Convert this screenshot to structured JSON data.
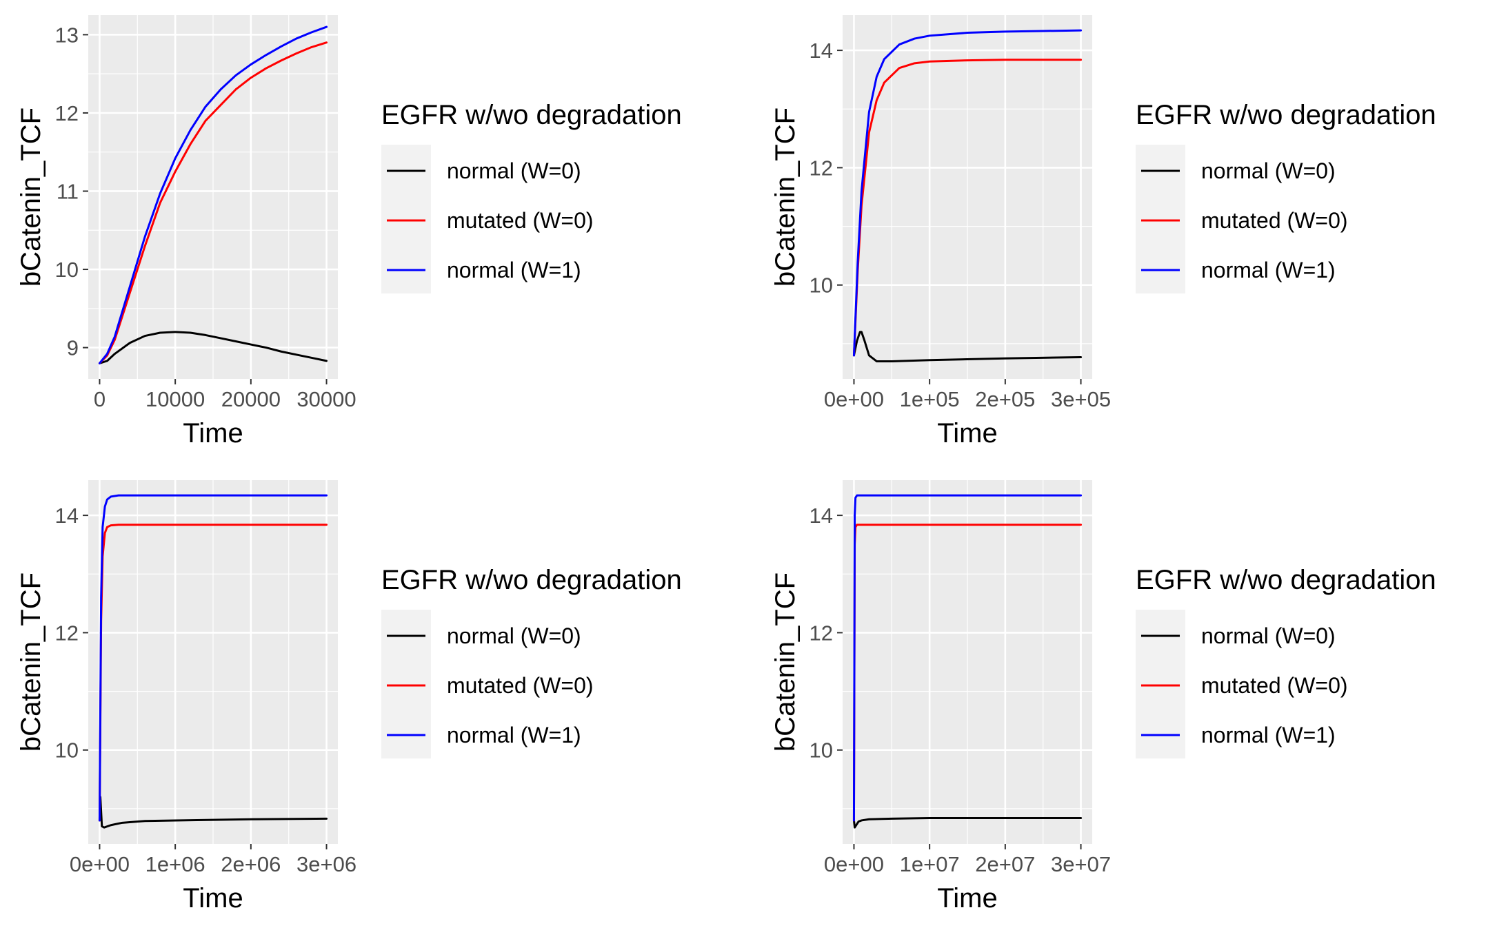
{
  "chart_data": [
    {
      "type": "line",
      "xlabel": "Time",
      "ylabel": "bCatenin_TCF",
      "xlim": [
        -1500,
        31500
      ],
      "ylim": [
        8.6,
        13.25
      ],
      "xticks": [
        0,
        10000,
        20000,
        30000
      ],
      "xtick_labels": [
        "0",
        "10000",
        "20000",
        "30000"
      ],
      "yticks": [
        9,
        10,
        11,
        12,
        13
      ],
      "ytick_labels": [
        "9",
        "10",
        "11",
        "12",
        "13"
      ],
      "grid": true,
      "legend_position": "right",
      "legend_title": "EGFR w/wo degradation",
      "series": [
        {
          "name": "normal (W=0)",
          "color": "#000000",
          "x": [
            0,
            1000,
            2000,
            4000,
            6000,
            8000,
            10000,
            12000,
            14000,
            16000,
            18000,
            20000,
            22000,
            24000,
            26000,
            28000,
            30000
          ],
          "y": [
            8.8,
            8.83,
            8.92,
            9.06,
            9.15,
            9.19,
            9.2,
            9.19,
            9.16,
            9.12,
            9.08,
            9.04,
            9.0,
            8.95,
            8.91,
            8.87,
            8.83
          ]
        },
        {
          "name": "mutated (W=0)",
          "color": "#ff0000",
          "x": [
            0,
            1000,
            2000,
            4000,
            6000,
            8000,
            10000,
            12000,
            14000,
            16000,
            18000,
            20000,
            22000,
            24000,
            26000,
            28000,
            30000
          ],
          "y": [
            8.8,
            8.9,
            9.1,
            9.7,
            10.3,
            10.85,
            11.25,
            11.6,
            11.9,
            12.1,
            12.3,
            12.45,
            12.57,
            12.67,
            12.76,
            12.84,
            12.9
          ]
        },
        {
          "name": "normal (W=1)",
          "color": "#0000ff",
          "x": [
            0,
            1000,
            2000,
            4000,
            6000,
            8000,
            10000,
            12000,
            14000,
            16000,
            18000,
            20000,
            22000,
            24000,
            26000,
            28000,
            30000
          ],
          "y": [
            8.8,
            8.92,
            9.14,
            9.78,
            10.42,
            10.97,
            11.42,
            11.78,
            12.08,
            12.3,
            12.48,
            12.62,
            12.74,
            12.85,
            12.95,
            13.03,
            13.1
          ]
        }
      ]
    },
    {
      "type": "line",
      "xlabel": "Time",
      "ylabel": "bCatenin_TCF",
      "xlim": [
        -15000,
        315000
      ],
      "ylim": [
        8.4,
        14.6
      ],
      "xticks": [
        0,
        100000,
        200000,
        300000
      ],
      "xtick_labels": [
        "0e+00",
        "1e+05",
        "2e+05",
        "3e+05"
      ],
      "yticks": [
        10,
        12,
        14
      ],
      "ytick_labels": [
        "10",
        "12",
        "14"
      ],
      "grid": true,
      "legend_position": "right",
      "legend_title": "EGFR w/wo degradation",
      "series": [
        {
          "name": "normal (W=0)",
          "color": "#000000",
          "x": [
            0,
            4000,
            8000,
            10000,
            14000,
            20000,
            30000,
            50000,
            100000,
            200000,
            300000
          ],
          "y": [
            8.8,
            9.05,
            9.2,
            9.2,
            9.05,
            8.8,
            8.7,
            8.7,
            8.72,
            8.75,
            8.77
          ]
        },
        {
          "name": "mutated (W=0)",
          "color": "#ff0000",
          "x": [
            0,
            5000,
            10000,
            20000,
            30000,
            40000,
            60000,
            80000,
            100000,
            150000,
            200000,
            250000,
            300000
          ],
          "y": [
            8.8,
            10.25,
            11.35,
            12.6,
            13.15,
            13.45,
            13.7,
            13.78,
            13.81,
            13.83,
            13.84,
            13.84,
            13.84
          ]
        },
        {
          "name": "normal (W=1)",
          "color": "#0000ff",
          "x": [
            0,
            5000,
            10000,
            20000,
            30000,
            40000,
            60000,
            80000,
            100000,
            150000,
            200000,
            250000,
            300000
          ],
          "y": [
            8.8,
            10.4,
            11.6,
            12.95,
            13.55,
            13.85,
            14.1,
            14.2,
            14.25,
            14.3,
            14.32,
            14.33,
            14.34
          ]
        }
      ]
    },
    {
      "type": "line",
      "xlabel": "Time",
      "ylabel": "bCatenin_TCF",
      "xlim": [
        -150000,
        3150000
      ],
      "ylim": [
        8.4,
        14.6
      ],
      "xticks": [
        0,
        1000000,
        2000000,
        3000000
      ],
      "xtick_labels": [
        "0e+00",
        "1e+06",
        "2e+06",
        "3e+06"
      ],
      "yticks": [
        10,
        12,
        14
      ],
      "ytick_labels": [
        "10",
        "12",
        "14"
      ],
      "grid": true,
      "legend_position": "right",
      "legend_title": "EGFR w/wo degradation",
      "series": [
        {
          "name": "normal (W=0)",
          "color": "#000000",
          "x": [
            0,
            10000,
            30000,
            60000,
            150000,
            300000,
            600000,
            1000000,
            2000000,
            3000000
          ],
          "y": [
            8.8,
            9.2,
            8.7,
            8.68,
            8.72,
            8.76,
            8.79,
            8.8,
            8.82,
            8.83
          ]
        },
        {
          "name": "mutated (W=0)",
          "color": "#ff0000",
          "x": [
            0,
            20000,
            40000,
            70000,
            100000,
            150000,
            250000,
            500000,
            1000000,
            3000000
          ],
          "y": [
            8.8,
            12.2,
            13.3,
            13.7,
            13.8,
            13.83,
            13.84,
            13.84,
            13.84,
            13.84
          ]
        },
        {
          "name": "normal (W=1)",
          "color": "#0000ff",
          "x": [
            0,
            20000,
            40000,
            70000,
            100000,
            150000,
            250000,
            500000,
            1000000,
            3000000
          ],
          "y": [
            8.8,
            12.6,
            13.8,
            14.15,
            14.27,
            14.32,
            14.34,
            14.34,
            14.34,
            14.34
          ]
        }
      ]
    },
    {
      "type": "line",
      "xlabel": "Time",
      "ylabel": "bCatenin_TCF",
      "xlim": [
        -1500000,
        31500000
      ],
      "ylim": [
        8.4,
        14.6
      ],
      "xticks": [
        0,
        10000000,
        20000000,
        30000000
      ],
      "xtick_labels": [
        "0e+00",
        "1e+07",
        "2e+07",
        "3e+07"
      ],
      "yticks": [
        10,
        12,
        14
      ],
      "ytick_labels": [
        "10",
        "12",
        "14"
      ],
      "grid": true,
      "legend_position": "right",
      "legend_title": "EGFR w/wo degradation",
      "series": [
        {
          "name": "normal (W=0)",
          "color": "#000000",
          "x": [
            0,
            100000,
            300000,
            600000,
            1000000,
            2000000,
            5000000,
            10000000,
            20000000,
            30000000
          ],
          "y": [
            8.8,
            8.68,
            8.72,
            8.78,
            8.8,
            8.82,
            8.83,
            8.84,
            8.84,
            8.84
          ]
        },
        {
          "name": "mutated (W=0)",
          "color": "#ff0000",
          "x": [
            0,
            100000,
            200000,
            400000,
            1000000,
            30000000
          ],
          "y": [
            8.8,
            13.5,
            13.8,
            13.84,
            13.84,
            13.84
          ]
        },
        {
          "name": "normal (W=1)",
          "color": "#0000ff",
          "x": [
            0,
            100000,
            200000,
            400000,
            1000000,
            30000000
          ],
          "y": [
            8.8,
            14.0,
            14.3,
            14.34,
            14.34,
            14.34
          ]
        }
      ]
    }
  ]
}
